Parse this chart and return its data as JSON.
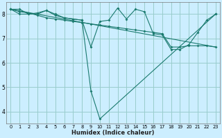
{
  "xlabel": "Humidex (Indice chaleur)",
  "bg_color": "#cceeff",
  "grid_color": "#99cccc",
  "line_color": "#1a7a6e",
  "xlim": [
    -0.5,
    23.5
  ],
  "ylim": [
    3.5,
    8.5
  ],
  "yticks": [
    4,
    5,
    6,
    7,
    8
  ],
  "xticks": [
    0,
    1,
    2,
    3,
    4,
    5,
    6,
    7,
    8,
    9,
    10,
    11,
    12,
    13,
    14,
    15,
    16,
    17,
    18,
    19,
    20,
    21,
    22,
    23
  ],
  "series": [
    {
      "x": [
        0,
        1,
        2,
        3,
        4,
        5,
        6,
        7,
        8,
        9,
        10,
        23
      ],
      "y": [
        8.2,
        8.2,
        8.0,
        8.05,
        8.15,
        8.0,
        7.85,
        7.8,
        7.75,
        4.85,
        3.7,
        8.0
      ]
    },
    {
      "x": [
        0,
        1,
        2,
        3,
        4,
        5,
        6,
        7,
        8,
        9,
        10,
        11,
        12,
        13,
        14,
        15,
        16,
        17,
        18,
        19,
        20,
        21,
        22,
        23
      ],
      "y": [
        8.2,
        8.0,
        8.0,
        8.0,
        8.15,
        7.95,
        7.85,
        7.8,
        7.75,
        6.65,
        7.7,
        7.75,
        8.25,
        7.8,
        8.2,
        8.1,
        7.2,
        7.15,
        6.55,
        6.55,
        6.75,
        7.25,
        7.75,
        8.0
      ]
    },
    {
      "x": [
        0,
        23
      ],
      "y": [
        8.2,
        6.65
      ]
    },
    {
      "x": [
        0,
        1,
        2,
        3,
        4,
        5,
        6,
        7,
        8,
        9,
        10,
        11,
        12,
        13,
        14,
        15,
        16,
        17,
        18,
        19,
        20,
        21,
        22,
        23
      ],
      "y": [
        8.2,
        8.1,
        8.05,
        7.95,
        7.85,
        7.8,
        7.75,
        7.7,
        7.65,
        7.6,
        7.55,
        7.5,
        7.45,
        7.4,
        7.35,
        7.3,
        7.25,
        7.2,
        6.65,
        6.65,
        6.7,
        6.7,
        6.7,
        6.65
      ]
    }
  ]
}
